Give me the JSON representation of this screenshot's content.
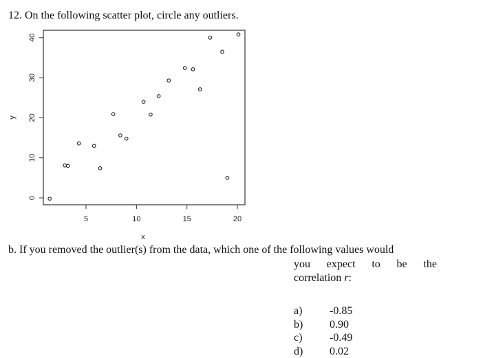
{
  "question": {
    "title": "12. On the following scatter plot, circle any outliers.",
    "part_b_line1": "b. If you removed the outlier(s) from the data, which one of the following values would",
    "part_b_line2_words": [
      "you",
      "expect",
      "to",
      "be",
      "the"
    ],
    "part_b_line3_prefix": "correlation ",
    "part_b_line3_var": "r",
    "part_b_line3_suffix": ":",
    "options": [
      {
        "letter": "a)",
        "value": "-0.85"
      },
      {
        "letter": "b)",
        "value": "0.90"
      },
      {
        "letter": "c)",
        "value": "-0.49"
      },
      {
        "letter": "d)",
        "value": "0.02"
      }
    ]
  },
  "chart_data": {
    "type": "scatter",
    "title": "",
    "xlabel": "x",
    "ylabel": "y",
    "xlim": [
      0.5,
      20.5
    ],
    "ylim": [
      -1.5,
      42
    ],
    "xticks": [
      5,
      10,
      15,
      20
    ],
    "yticks": [
      0,
      10,
      20,
      30,
      40
    ],
    "grid": false,
    "legend": null,
    "points": [
      {
        "x": 1.4,
        "y": -0.2
      },
      {
        "x": 2.9,
        "y": 8.1
      },
      {
        "x": 3.2,
        "y": 8.0
      },
      {
        "x": 4.3,
        "y": 13.6
      },
      {
        "x": 5.8,
        "y": 13.0
      },
      {
        "x": 6.4,
        "y": 7.4
      },
      {
        "x": 7.7,
        "y": 20.9
      },
      {
        "x": 8.4,
        "y": 15.6
      },
      {
        "x": 9.0,
        "y": 14.8
      },
      {
        "x": 10.7,
        "y": 24.0
      },
      {
        "x": 11.4,
        "y": 20.8
      },
      {
        "x": 12.2,
        "y": 25.4
      },
      {
        "x": 13.2,
        "y": 29.3
      },
      {
        "x": 14.8,
        "y": 32.4
      },
      {
        "x": 15.6,
        "y": 32.1
      },
      {
        "x": 16.3,
        "y": 27.1
      },
      {
        "x": 17.3,
        "y": 40.0
      },
      {
        "x": 18.5,
        "y": 36.5
      },
      {
        "x": 19.0,
        "y": 5.0
      },
      {
        "x": 20.1,
        "y": 40.8
      }
    ]
  }
}
